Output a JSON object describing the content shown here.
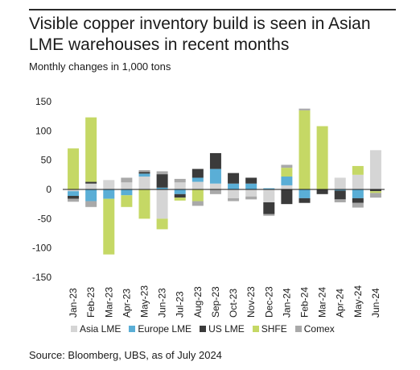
{
  "title": "Visible copper inventory build is seen in Asian LME warehouses in recent months",
  "subtitle": "Monthly changes in 1,000 tons",
  "source": "Source: Bloomberg, UBS, as of July 2024",
  "colors": {
    "Asia LME": "#d5d5d5",
    "Europe LME": "#5aaed6",
    "US LME": "#3b3b3b",
    "SHFE": "#c5d865",
    "Comex": "#a9a9a9"
  },
  "chart_data": {
    "type": "bar",
    "stacked": true,
    "ylim": [
      -150,
      150
    ],
    "yticks": [
      150,
      100,
      50,
      0,
      -50,
      -100,
      -150
    ],
    "ytick_labels": [
      "150",
      "100",
      "50",
      "0",
      "-50",
      "-100",
      "-150"
    ],
    "grid": false,
    "legend_position": "bottom",
    "categories": [
      "Jan-23",
      "Feb-23",
      "Mar-23",
      "Apr-23",
      "May-23",
      "Jun-23",
      "Jul-23",
      "Aug-23",
      "Sep-23",
      "Oct-23",
      "Nov-23",
      "Dec-23",
      "Jan-24",
      "Feb-24",
      "Mar-24",
      "Apr-24",
      "May-24",
      "Jun-24"
    ],
    "series": [
      {
        "name": "Asia LME",
        "values": [
          -3,
          10,
          16,
          12,
          22,
          -50,
          12,
          13,
          10,
          -15,
          -12,
          -22,
          7,
          0,
          0,
          20,
          25,
          67
        ]
      },
      {
        "name": "Europe LME",
        "values": [
          -8,
          -20,
          -16,
          -10,
          5,
          3,
          -8,
          7,
          25,
          10,
          10,
          2,
          15,
          -15,
          0,
          -2,
          -15,
          0
        ]
      },
      {
        "name": "US LME",
        "values": [
          -5,
          3,
          0,
          0,
          3,
          23,
          -6,
          15,
          27,
          18,
          10,
          -20,
          -25,
          -8,
          -8,
          -15,
          -8,
          -3
        ]
      },
      {
        "name": "SHFE",
        "values": [
          70,
          110,
          -95,
          -20,
          -50,
          -18,
          -5,
          -20,
          0,
          0,
          0,
          0,
          15,
          135,
          108,
          0,
          15,
          -3
        ]
      },
      {
        "name": "Comex",
        "values": [
          -5,
          -10,
          0,
          8,
          3,
          5,
          6,
          -8,
          -8,
          -5,
          -5,
          -3,
          5,
          3,
          0,
          -5,
          -8,
          -8
        ]
      }
    ]
  }
}
